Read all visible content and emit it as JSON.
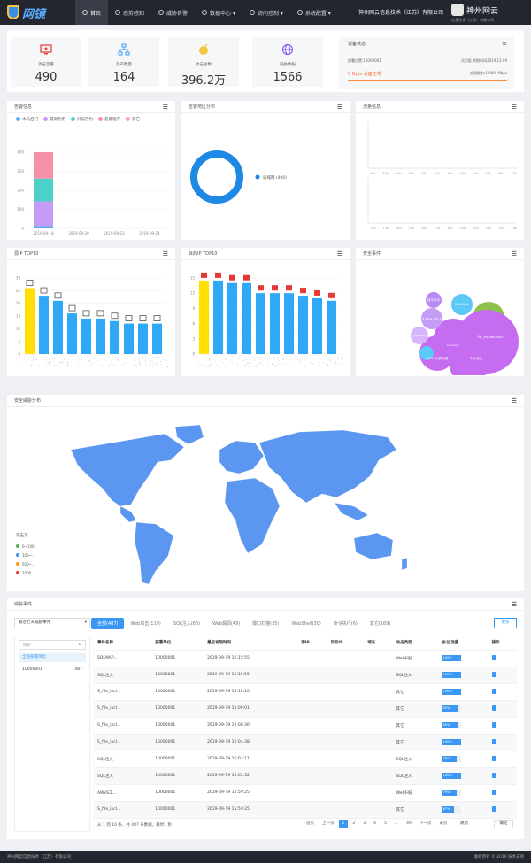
{
  "nav": {
    "logo_text": "网镜",
    "items": [
      {
        "label": "首页"
      },
      {
        "label": "态势感知"
      },
      {
        "label": "威胁告警"
      },
      {
        "label": "数据中心 ▾"
      },
      {
        "label": "访问控制 ▾"
      },
      {
        "label": "系统配置 ▾"
      }
    ],
    "company": "神州网云信息技术（江苏）有限公司",
    "brand_name": "神州网云",
    "brand_sub": "信息技术（江苏）有限公司"
  },
  "stats": [
    {
      "label": "攻击告警",
      "value": "490",
      "color": "#e8453c"
    },
    {
      "label": "资产数量",
      "value": "164",
      "color": "#3a98f3"
    },
    {
      "label": "攻击总数",
      "value": "396.2万",
      "color": "#f5c542"
    },
    {
      "label": "威胁情报",
      "value": "1566",
      "color": "#8a5cf6"
    }
  ],
  "device": {
    "title": "设备状态",
    "id_text": "部署位置:10000001",
    "license_text": "试用版 到期时间2019.12.09",
    "status_text": "0 Byte 设备正常",
    "capacity_text": "处理能力:10000 Mbps"
  },
  "panels": {
    "alarm_info": "告警信息",
    "alarm_region": "告警地区分布",
    "flow_info": "流量信息",
    "src_top10": "源IP TOP10",
    "dst_top10": "目的IP TOP10",
    "security_events": "安全事件",
    "threat_map": "安全威胁分布",
    "threat_events": "威胁事件"
  },
  "alarm_legend": [
    {
      "label": "木马后门",
      "color": "#5aa9ff"
    },
    {
      "label": "漏洞利用",
      "color": "#c59cf5"
    },
    {
      "label": "扫描行为",
      "color": "#4dd0c8"
    },
    {
      "label": "恶意程序",
      "color": "#f78fa7"
    },
    {
      "label": "其它",
      "color": "#ff9f9f"
    }
  ],
  "chart_data": [
    {
      "type": "bar",
      "title": "告警信息",
      "categories": [
        "2019-09-18",
        "2019-09-20",
        "2019-09-22",
        "2019-09-24"
      ],
      "ylim": [
        0,
        400
      ],
      "yticks": [
        0,
        100,
        200,
        300,
        400
      ],
      "series": [
        {
          "name": "木马后门",
          "values": [
            12,
            0,
            0,
            0
          ]
        },
        {
          "name": "漏洞利用",
          "values": [
            130,
            0,
            0,
            0
          ]
        },
        {
          "name": "扫描行为",
          "values": [
            120,
            0,
            0,
            0
          ]
        },
        {
          "name": "恶意程序",
          "values": [
            138,
            0,
            0,
            0
          ]
        }
      ]
    },
    {
      "type": "pie",
      "title": "告警地区分布",
      "series": [
        {
          "name": "局域网",
          "values": [
            490
          ]
        }
      ],
      "legend": "局域网 (490)"
    },
    {
      "type": "bar",
      "title": "源IP TOP10",
      "categories": [
        "1",
        "2",
        "3",
        "4",
        "5",
        "6",
        "7",
        "8",
        "9",
        "10"
      ],
      "ylim": [
        0,
        30
      ],
      "yticks": [
        0,
        5,
        10,
        15,
        20,
        25,
        30
      ],
      "values": [
        26,
        23,
        21,
        16,
        14,
        14,
        13,
        12,
        12,
        12
      ]
    },
    {
      "type": "bar",
      "title": "目的IP TOP10",
      "categories": [
        "1",
        "2",
        "3",
        "4",
        "5",
        "6",
        "7",
        "8",
        "9",
        "10"
      ],
      "ylim": [
        0,
        15
      ],
      "yticks": [
        0,
        3,
        6,
        9,
        12,
        15
      ],
      "values": [
        14.5,
        14.5,
        14,
        14,
        12,
        12,
        12,
        11.5,
        11,
        10.5
      ]
    }
  ],
  "flow_ticks": [
    "12h",
    "13h",
    "14h",
    "15h",
    "16h",
    "17h",
    "18h",
    "19h",
    "20h",
    "21h",
    "22h",
    "23h"
  ],
  "bubbles": [
    {
      "label": "挂马攻击",
      "color": "#b98af5"
    },
    {
      "label": "WebShell",
      "color": "#5bc8f5"
    },
    {
      "label": "S_Bone_Ctrl_S",
      "color": "#c59cf5"
    },
    {
      "label": "S_Webshell_S",
      "color": "#d8b4fe"
    },
    {
      "label": "file_include_vuln",
      "color": "#c56cf0"
    },
    {
      "label": "AWVS工具扫描",
      "color": "#c56cf0"
    },
    {
      "label": "SQL注入",
      "color": "#c56cf0"
    },
    {
      "label": "zcomvuln",
      "color": "#5bc8f5"
    },
    {
      "label": "其它",
      "color": "#8bc34a"
    }
  ],
  "map_legend": [
    {
      "label": "0~100",
      "color": "#4caf50"
    },
    {
      "label": "100~...",
      "color": "#3a98f3"
    },
    {
      "label": "500~...",
      "color": "#ff9800"
    },
    {
      "label": "1000...",
      "color": "#e53935"
    }
  ],
  "map_legend_title": "攻击次...",
  "events": {
    "select_value": "最近七天威胁事件",
    "tabs": [
      "全部(487)",
      "Web攻击(119)",
      "SQL注入(80)",
      "Web漏洞(49)",
      "端口扫描(35)",
      "WebShell(30)",
      "命令执行(6)",
      "其它(169)"
    ],
    "more": "更多",
    "search_placeholder": "搜索",
    "tree_root": "全部部署单位",
    "tree_items": [
      {
        "name": "10000001",
        "count": "487"
      }
    ],
    "columns": [
      "事件名称",
      "部署单位",
      "最后发现时间",
      "源IP",
      "目的IP",
      "域名",
      "攻击类型",
      "进/出流量",
      "操作"
    ],
    "rows": [
      {
        "name": "SQLMAP...",
        "unit": "10000001",
        "time": "2019-09-19 16:15:55",
        "type": "Web扫描",
        "flow": "100%",
        "pct": 100
      },
      {
        "name": "SQL注入",
        "unit": "10000001",
        "time": "2019-09-19 16:15:55",
        "type": "SQL注入",
        "flow": "100%",
        "pct": 100
      },
      {
        "name": "S_file_incl...",
        "unit": "10000001",
        "time": "2019-09-19 16:10:10",
        "type": "其它",
        "flow": "100%",
        "pct": 100
      },
      {
        "name": "S_file_incl...",
        "unit": "10000001",
        "time": "2019-09-19 16:09:01",
        "type": "其它",
        "flow": "85%",
        "pct": 85
      },
      {
        "name": "S_file_incl...",
        "unit": "10000001",
        "time": "2019-09-19 16:08:30",
        "type": "其它",
        "flow": "85%",
        "pct": 85
      },
      {
        "name": "S_file_incl...",
        "unit": "10000001",
        "time": "2019-09-19 16:04:38",
        "type": "其它",
        "flow": "100%",
        "pct": 100
      },
      {
        "name": "SQL注入",
        "unit": "10000001",
        "time": "2019-09-19 16:03:11",
        "type": "SQL注入",
        "flow": "79%",
        "pct": 79
      },
      {
        "name": "SQL注入",
        "unit": "10000001",
        "time": "2019-09-19 16:02:32",
        "type": "SQL注入",
        "flow": "100%",
        "pct": 100
      },
      {
        "name": "AWVS工...",
        "unit": "10000001",
        "time": "2019-09-19 15:59:25",
        "type": "Web扫描",
        "flow": "79%",
        "pct": 79
      },
      {
        "name": "S_file_incl...",
        "unit": "10000001",
        "time": "2019-09-19 15:59:25",
        "type": "其它",
        "flow": "67%",
        "pct": 67
      }
    ],
    "summary": "从 1 到 10 条，共 487 条数据，耗时1 秒",
    "pager": [
      "首页",
      "上一页",
      "1",
      "2",
      "3",
      "4",
      "5",
      "...",
      "49",
      "下一页",
      "末页"
    ],
    "jump_label": "跳到",
    "confirm": "确定"
  },
  "footer": {
    "left": "神州网云信息技术（江苏）有限公司",
    "right": "版权所有 © 2019    技术支持"
  }
}
